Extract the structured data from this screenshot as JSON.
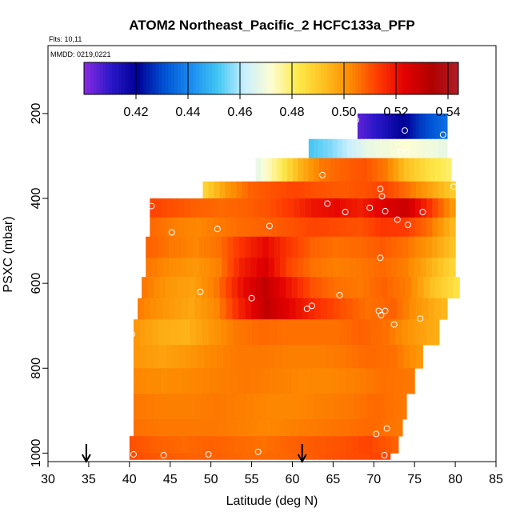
{
  "chart_data": {
    "type": "heatmap",
    "title": "ATOM2 Northeast_Pacific_2 HCFC133a_PFP",
    "flights_note": "Flts: 10,11",
    "date_note": "MMDD: 0219,0221",
    "xlabel": "Latitude (deg N)",
    "ylabel": "PSXC (mbar)",
    "xlim": [
      30,
      85
    ],
    "ylim": [
      1020,
      40
    ],
    "xticks": [
      30,
      35,
      40,
      45,
      50,
      55,
      60,
      65,
      70,
      75,
      80,
      85
    ],
    "yticks": [
      200,
      400,
      600,
      800,
      1000
    ],
    "colorbar": {
      "range": [
        0.4,
        0.544
      ],
      "ticks": [
        "0.42",
        "0.44",
        "0.46",
        "0.48",
        "0.50",
        "0.52",
        "0.54"
      ],
      "tick_values": [
        0.42,
        0.44,
        0.46,
        0.48,
        0.5,
        0.52,
        0.54
      ],
      "colors": [
        "#8a2be2",
        "#2a18c8",
        "#000096",
        "#0052d4",
        "#1a8cf0",
        "#41c6f2",
        "#c8efff",
        "#fdfdd2",
        "#fde94b",
        "#fdbf1e",
        "#fd8800",
        "#ff3a00",
        "#e20000",
        "#b00000",
        "#b01e28"
      ]
    },
    "layers": [
      {
        "p": [
          200,
          260
        ],
        "lat": [
          68,
          79
        ],
        "values": [
          0.405,
          0.409,
          0.413,
          0.418,
          0.422,
          0.428,
          0.432,
          0.436
        ]
      },
      {
        "p": [
          260,
          305
        ],
        "lat": [
          62,
          79
        ],
        "values": [
          0.452,
          0.456,
          0.462,
          0.468,
          0.47,
          0.472,
          0.47,
          0.468
        ]
      },
      {
        "p": [
          305,
          360
        ],
        "lat": [
          55.5,
          79.5
        ],
        "values": [
          0.468,
          0.48,
          0.495,
          0.505,
          0.508,
          0.51,
          0.505,
          0.492,
          0.485,
          0.48
        ]
      },
      {
        "p": [
          360,
          400
        ],
        "lat": [
          49,
          80
        ],
        "values": [
          0.488,
          0.5,
          0.508,
          0.51,
          0.512,
          0.51,
          0.509,
          0.51,
          0.512,
          0.506,
          0.498,
          0.49
        ]
      },
      {
        "p": [
          400,
          445
        ],
        "lat": [
          42.5,
          80
        ],
        "values": [
          0.512,
          0.51,
          0.508,
          0.507,
          0.508,
          0.51,
          0.514,
          0.52,
          0.522,
          0.518,
          0.524,
          0.528,
          0.515,
          0.5
        ]
      },
      {
        "p": [
          445,
          490
        ],
        "lat": [
          42.5,
          80
        ],
        "values": [
          0.507,
          0.504,
          0.503,
          0.505,
          0.507,
          0.508,
          0.51,
          0.512,
          0.511,
          0.51,
          0.514,
          0.513,
          0.506,
          0.494
        ]
      },
      {
        "p": [
          490,
          540
        ],
        "lat": [
          42,
          80
        ],
        "values": [
          0.508,
          0.505,
          0.503,
          0.506,
          0.515,
          0.522,
          0.514,
          0.508,
          0.506,
          0.507,
          0.509,
          0.506,
          0.5,
          0.492
        ]
      },
      {
        "p": [
          540,
          585
        ],
        "lat": [
          42,
          80
        ],
        "values": [
          0.505,
          0.502,
          0.5,
          0.504,
          0.518,
          0.525,
          0.512,
          0.506,
          0.504,
          0.505,
          0.507,
          0.504,
          0.496,
          0.487
        ]
      },
      {
        "p": [
          585,
          635
        ],
        "lat": [
          41.5,
          80.5
        ],
        "values": [
          0.505,
          0.5,
          0.498,
          0.505,
          0.52,
          0.53,
          0.52,
          0.51,
          0.506,
          0.505,
          0.508,
          0.504,
          0.492,
          0.484
        ]
      },
      {
        "p": [
          635,
          685
        ],
        "lat": [
          41,
          79
        ],
        "values": [
          0.504,
          0.5,
          0.497,
          0.503,
          0.518,
          0.53,
          0.522,
          0.515,
          0.51,
          0.506,
          0.508,
          0.5,
          0.494
        ]
      },
      {
        "p": [
          685,
          745
        ],
        "lat": [
          40.5,
          78
        ],
        "values": [
          0.5,
          0.496,
          0.495,
          0.5,
          0.505,
          0.507,
          0.506,
          0.506,
          0.506,
          0.508,
          0.506,
          0.5,
          0.496
        ]
      },
      {
        "p": [
          745,
          800
        ],
        "lat": [
          40.5,
          76
        ],
        "values": [
          0.5,
          0.498,
          0.5,
          0.503,
          0.505,
          0.505,
          0.504,
          0.504,
          0.505,
          0.507,
          0.506,
          0.5
        ]
      },
      {
        "p": [
          800,
          860
        ],
        "lat": [
          40.5,
          75
        ],
        "values": [
          0.503,
          0.502,
          0.503,
          0.504,
          0.505,
          0.504,
          0.503,
          0.503,
          0.504,
          0.506,
          0.505
        ]
      },
      {
        "p": [
          860,
          920
        ],
        "lat": [
          40.5,
          74
        ],
        "values": [
          0.505,
          0.504,
          0.504,
          0.505,
          0.504,
          0.503,
          0.503,
          0.504,
          0.505,
          0.507,
          0.505
        ]
      },
      {
        "p": [
          920,
          960
        ],
        "lat": [
          40.5,
          73.5
        ],
        "values": [
          0.506,
          0.505,
          0.505,
          0.505,
          0.504,
          0.503,
          0.504,
          0.505,
          0.506,
          0.507,
          0.505
        ]
      },
      {
        "p": [
          960,
          1000
        ],
        "lat": [
          40,
          73
        ],
        "values": [
          0.51,
          0.508,
          0.507,
          0.508,
          0.507,
          0.506,
          0.508,
          0.509,
          0.51,
          0.512,
          0.508
        ]
      },
      {
        "p": [
          1000,
          1015
        ],
        "lat": [
          40,
          72
        ],
        "values": [
          0.511,
          0.509,
          0.508,
          0.508,
          0.507,
          0.507,
          0.508,
          0.51,
          0.511,
          0.512
        ]
      }
    ],
    "sample_points": [
      {
        "lat": 67.8,
        "p": 215
      },
      {
        "lat": 73.8,
        "p": 240
      },
      {
        "lat": 78.5,
        "p": 250
      },
      {
        "lat": 73.3,
        "p": 290
      },
      {
        "lat": 74.0,
        "p": 290
      },
      {
        "lat": 63.7,
        "p": 345
      },
      {
        "lat": 79.8,
        "p": 372
      },
      {
        "lat": 70.8,
        "p": 378
      },
      {
        "lat": 71.0,
        "p": 395
      },
      {
        "lat": 42.7,
        "p": 418
      },
      {
        "lat": 64.3,
        "p": 412
      },
      {
        "lat": 69.5,
        "p": 422
      },
      {
        "lat": 66.5,
        "p": 432
      },
      {
        "lat": 71.4,
        "p": 430
      },
      {
        "lat": 76.0,
        "p": 432
      },
      {
        "lat": 72.9,
        "p": 450
      },
      {
        "lat": 74.2,
        "p": 462
      },
      {
        "lat": 57.2,
        "p": 465
      },
      {
        "lat": 45.2,
        "p": 480
      },
      {
        "lat": 50.8,
        "p": 472
      },
      {
        "lat": 70.8,
        "p": 540
      },
      {
        "lat": 48.7,
        "p": 620
      },
      {
        "lat": 65.8,
        "p": 628
      },
      {
        "lat": 55.0,
        "p": 635
      },
      {
        "lat": 61.8,
        "p": 660
      },
      {
        "lat": 62.4,
        "p": 653
      },
      {
        "lat": 70.6,
        "p": 665
      },
      {
        "lat": 70.9,
        "p": 675
      },
      {
        "lat": 71.4,
        "p": 665
      },
      {
        "lat": 75.7,
        "p": 683
      },
      {
        "lat": 72.5,
        "p": 697
      },
      {
        "lat": 40.3,
        "p": 720
      },
      {
        "lat": 71.6,
        "p": 942
      },
      {
        "lat": 70.3,
        "p": 955
      },
      {
        "lat": 40.5,
        "p": 1003
      },
      {
        "lat": 44.2,
        "p": 1005
      },
      {
        "lat": 49.7,
        "p": 1003
      },
      {
        "lat": 55.8,
        "p": 997
      },
      {
        "lat": 71.3,
        "p": 1005
      }
    ],
    "arrows_lat": [
      34.7,
      61.2
    ]
  }
}
